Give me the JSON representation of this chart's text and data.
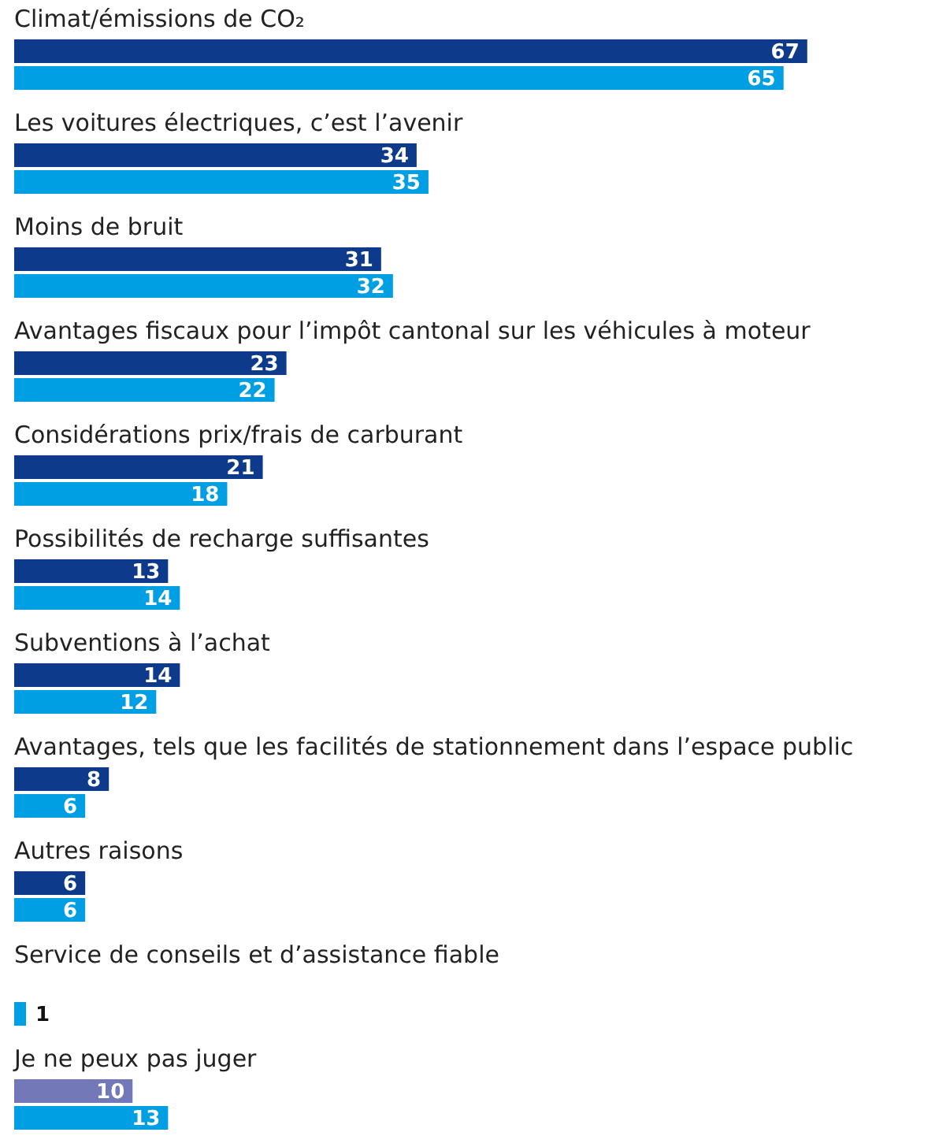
{
  "chart_data": {
    "type": "bar",
    "orientation": "horizontal",
    "data_labels": true,
    "categories": [
      "Climat/émissions de CO₂",
      "Les voitures électriques, c’est l’avenir",
      "Moins de bruit",
      "Avantages fiscaux pour l’impôt cantonal sur les véhicules à moteur",
      "Considérations prix/frais de carburant",
      "Possibilités de recharge suffisantes",
      "Subventions à l’achat",
      "Avantages, tels que les facilités de stationnement dans l’espace public",
      "Autres raisons",
      "Service de conseils et d’assistance fiable",
      "Je ne peux pas juger"
    ],
    "series": [
      {
        "colors": [
          "#0d3a8a",
          "#0d3a8a",
          "#0d3a8a",
          "#0d3a8a",
          "#0d3a8a",
          "#0d3a8a",
          "#0d3a8a",
          "#0d3a8a",
          "#0d3a8a",
          null,
          "#7278b8"
        ],
        "values": [
          67,
          34,
          31,
          23,
          21,
          13,
          14,
          8,
          6,
          null,
          10
        ]
      },
      {
        "color": "#009fe3",
        "values": [
          65,
          35,
          32,
          22,
          18,
          14,
          12,
          6,
          6,
          1,
          13
        ]
      }
    ]
  }
}
